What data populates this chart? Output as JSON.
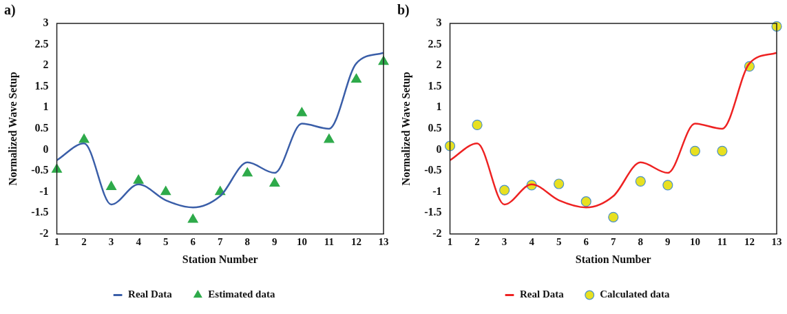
{
  "chart_data": [
    {
      "type": "line",
      "title": "a)",
      "xlabel": "Station Number",
      "ylabel": "Normalized Wave Setup",
      "x": [
        1,
        2,
        3,
        4,
        5,
        6,
        7,
        8,
        9,
        10,
        11,
        12,
        13
      ],
      "xlim": [
        1,
        13
      ],
      "xticks": [
        1,
        2,
        3,
        4,
        5,
        6,
        7,
        8,
        9,
        10,
        11,
        12,
        13
      ],
      "ylim": [
        -2,
        3
      ],
      "yticks": [
        -2,
        -1.5,
        -1,
        -0.5,
        0,
        0.5,
        1,
        1.5,
        2,
        2.5,
        3
      ],
      "grid": false,
      "legend": "bottom",
      "series": [
        {
          "name": "Real Data",
          "type": "line",
          "color": "#3a5ea8",
          "marker": "none",
          "values": [
            -0.25,
            0.15,
            -1.3,
            -0.82,
            -1.2,
            -1.37,
            -1.1,
            -0.3,
            -0.55,
            0.62,
            0.5,
            2.05,
            2.3
          ]
        },
        {
          "name": "Estimated data",
          "type": "scatter",
          "color": "#2eaa4a",
          "marker": "triangle",
          "values": [
            -0.47,
            0.24,
            -0.88,
            -0.73,
            -1.0,
            -1.66,
            -1.0,
            -0.56,
            -0.8,
            0.87,
            0.24,
            1.67,
            2.09
          ]
        }
      ]
    },
    {
      "type": "line",
      "title": "b)",
      "xlabel": "Station Number",
      "ylabel": "Normalized Wave Setup",
      "x": [
        1,
        2,
        3,
        4,
        5,
        6,
        7,
        8,
        9,
        10,
        11,
        12,
        13
      ],
      "xlim": [
        1,
        13
      ],
      "xticks": [
        1,
        2,
        3,
        4,
        5,
        6,
        7,
        8,
        9,
        10,
        11,
        12,
        13
      ],
      "ylim": [
        -2,
        3
      ],
      "yticks": [
        -2,
        -1.5,
        -1,
        -0.5,
        0,
        0.5,
        1,
        1.5,
        2,
        2.5,
        3
      ],
      "grid": false,
      "legend": "bottom",
      "series": [
        {
          "name": "Real Data",
          "type": "line",
          "color": "#ee2222",
          "marker": "none",
          "values": [
            -0.25,
            0.15,
            -1.3,
            -0.82,
            -1.2,
            -1.37,
            -1.1,
            -0.3,
            -0.55,
            0.62,
            0.5,
            2.05,
            2.3
          ]
        },
        {
          "name": "Calculated data",
          "type": "scatter",
          "color": "#e8e020",
          "marker": "circle",
          "values": [
            0.09,
            0.59,
            -0.96,
            -0.84,
            -0.81,
            -1.23,
            -1.6,
            -0.75,
            -0.84,
            -0.03,
            -0.03,
            1.98,
            2.93
          ]
        }
      ]
    }
  ]
}
